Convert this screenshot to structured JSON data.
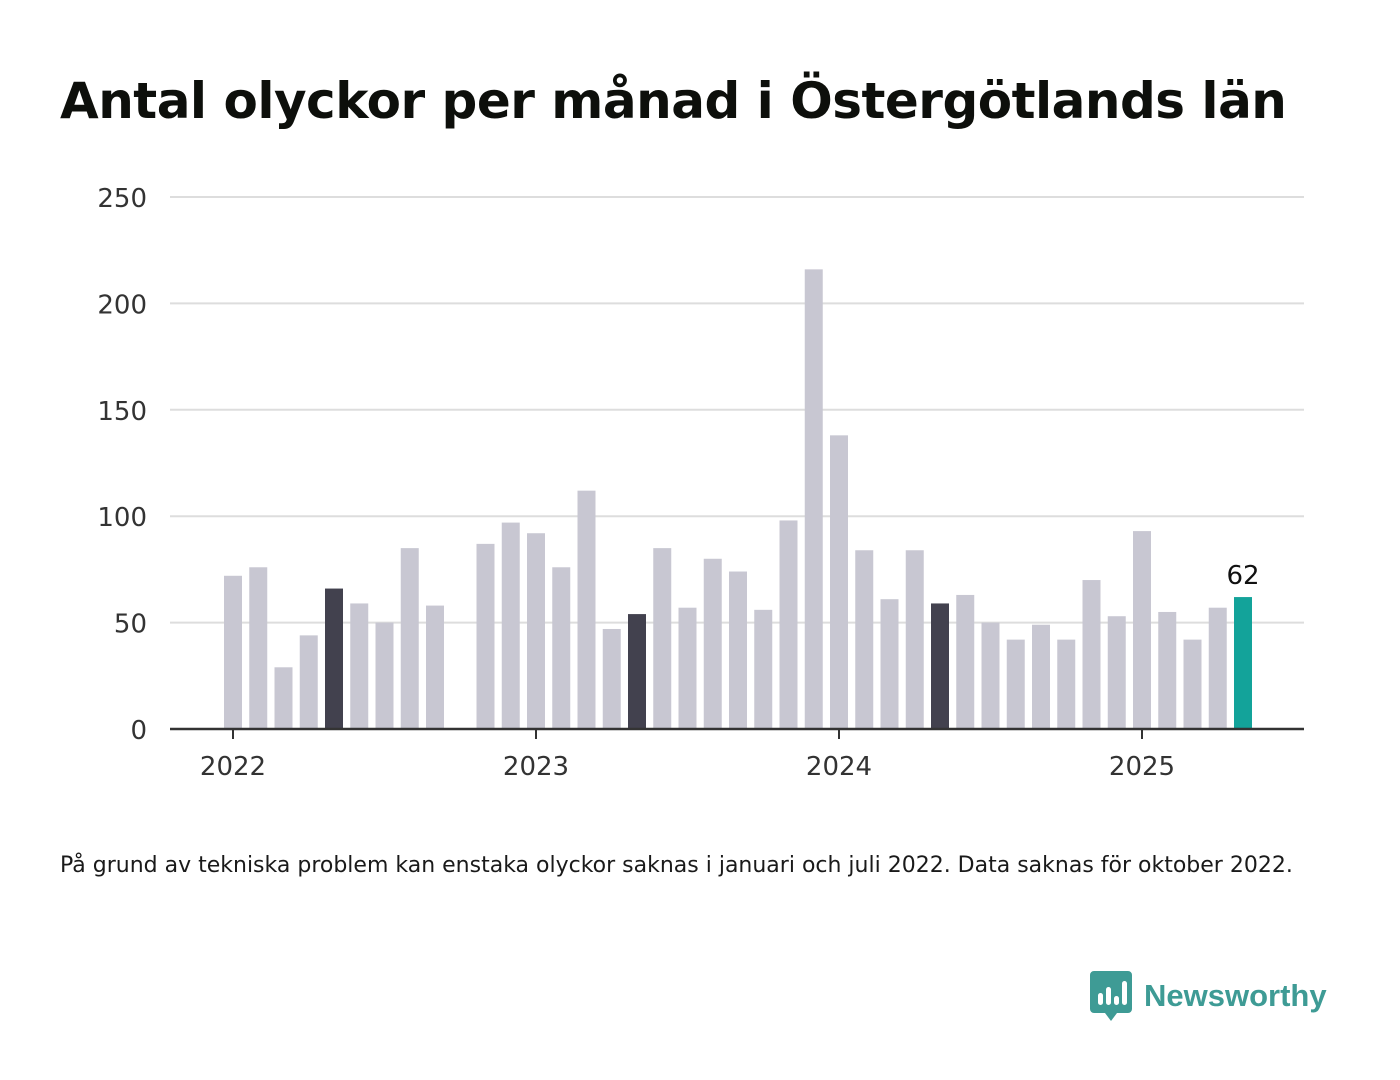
{
  "title": "Antal olyckor per månad i Östergötlands län",
  "note": "På grund av tekniska problem kan enstaka olyckor saknas i januari och juli 2022. Data saknas för oktober 2022.",
  "brand": {
    "name": "Newsworthy",
    "color": "#3e9b95",
    "icon": "newsworthy-logo-icon"
  },
  "colors": {
    "bar": "#c8c7d2",
    "highlight": "#42414e",
    "current": "#13a39a",
    "grid": "#dddddd",
    "axis": "#333333"
  },
  "chart_data": {
    "type": "bar",
    "title": "Antal olyckor per månad i Östergötlands län",
    "xlabel": "",
    "ylabel": "",
    "ylim": [
      0,
      250
    ],
    "yticks": [
      0,
      50,
      100,
      150,
      200,
      250
    ],
    "xticks": [
      {
        "label": "2022",
        "date": "2022-01"
      },
      {
        "label": "2023",
        "date": "2023-01"
      },
      {
        "label": "2024",
        "date": "2024-01"
      },
      {
        "label": "2025",
        "date": "2025-01"
      }
    ],
    "grid": true,
    "x": [
      "2022-01",
      "2022-02",
      "2022-03",
      "2022-04",
      "2022-05",
      "2022-06",
      "2022-07",
      "2022-08",
      "2022-09",
      "2022-10",
      "2022-11",
      "2022-12",
      "2023-01",
      "2023-02",
      "2023-03",
      "2023-04",
      "2023-05",
      "2023-06",
      "2023-07",
      "2023-08",
      "2023-09",
      "2023-10",
      "2023-11",
      "2023-12",
      "2024-01",
      "2024-02",
      "2024-03",
      "2024-04",
      "2024-05",
      "2024-06",
      "2024-07",
      "2024-08",
      "2024-09",
      "2024-10",
      "2024-11",
      "2024-12",
      "2025-01",
      "2025-02",
      "2025-03",
      "2025-04",
      "2025-05"
    ],
    "values": [
      72,
      76,
      29,
      44,
      66,
      59,
      50,
      85,
      58,
      null,
      87,
      97,
      92,
      76,
      112,
      47,
      54,
      85,
      57,
      80,
      74,
      56,
      98,
      216,
      138,
      84,
      61,
      84,
      59,
      63,
      50,
      42,
      49,
      42,
      70,
      53,
      93,
      55,
      42,
      57,
      62
    ],
    "highlighted": [
      "2022-05",
      "2023-05",
      "2024-05"
    ],
    "current": "2025-05",
    "labels": [
      {
        "x": "2025-05",
        "text": "62"
      }
    ]
  }
}
